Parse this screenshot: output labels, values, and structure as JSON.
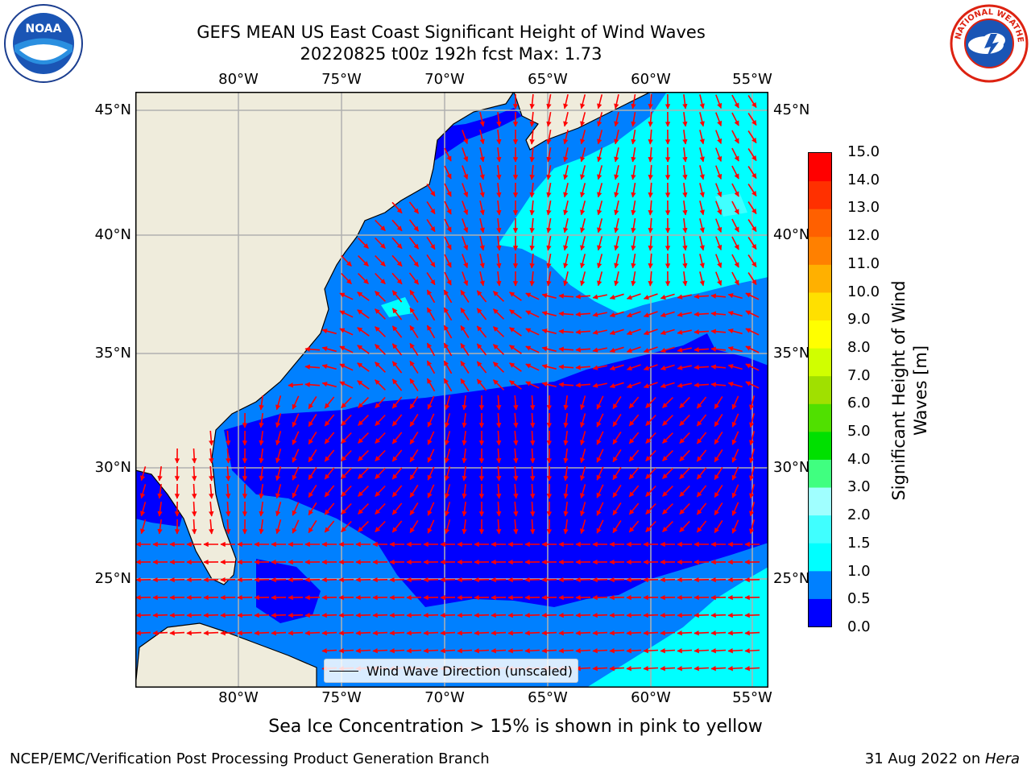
{
  "title": {
    "line1": "GEFS MEAN US East Coast Significant Height of Wind Waves",
    "line2": "20220825 t00z 192h fcst   Max: 1.73"
  },
  "logos": {
    "left": {
      "icon": "noaa-logo",
      "text": "NOAA"
    },
    "right": {
      "icon": "nws-logo",
      "text": "NATIONAL WEATHER SERVICE"
    }
  },
  "map": {
    "lon_ticks": [
      "80°W",
      "75°W",
      "70°W",
      "65°W",
      "60°W",
      "55°W"
    ],
    "lat_ticks": [
      "45°N",
      "40°N",
      "35°N",
      "30°N",
      "25°N"
    ],
    "lon_range": [
      -85,
      -54.3
    ],
    "lat_range": [
      20.3,
      46
    ],
    "legend_text": "Wind Wave Direction (unscaled)",
    "arrow_color": "#ff0000",
    "land_color": "#efecdc"
  },
  "colorbar": {
    "label": "Significant Height of Wind\nWaves [m]",
    "label_line1": "Significant Height of Wind",
    "label_line2": "Waves [m]",
    "ticks": [
      "0.0",
      "0.5",
      "1.0",
      "1.5",
      "2.0",
      "3.0",
      "4.0",
      "5.0",
      "6.0",
      "7.0",
      "8.0",
      "9.0",
      "10.0",
      "11.0",
      "12.0",
      "13.0",
      "14.0",
      "15.0"
    ],
    "colors": [
      "#0000ff",
      "#0080ff",
      "#00ffff",
      "#40ffff",
      "#a0ffff",
      "#40ff80",
      "#00e000",
      "#50e000",
      "#a0e000",
      "#d0ff00",
      "#ffff00",
      "#ffe000",
      "#ffb000",
      "#ff8000",
      "#ff6000",
      "#ff3000",
      "#ff0000"
    ]
  },
  "note": "Sea Ice Concentration > 15% is shown in pink to yellow",
  "footer": {
    "left": "NCEP/EMC/Verification Post Processing Product Generation Branch",
    "date": "31 Aug 2022 on ",
    "machine": "Hera"
  }
}
